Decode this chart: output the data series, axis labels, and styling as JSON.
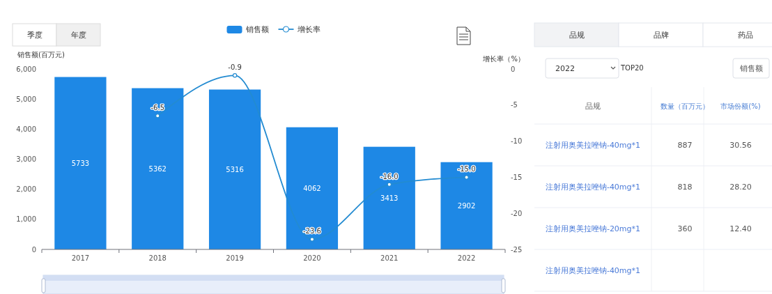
{
  "chart_data": [
    {
      "type": "bar",
      "categories": [
        "2017",
        "2018",
        "2019",
        "2020",
        "2021",
        "2022"
      ],
      "series": [
        {
          "name": "销售额",
          "type": "bar",
          "color": "#1e88e5",
          "values": [
            5733,
            5362,
            5316,
            4062,
            3413,
            2902
          ],
          "value_labels": [
            "5733",
            "5362",
            "5316",
            "4062",
            "3413",
            "2902"
          ]
        },
        {
          "name": "增长率",
          "type": "line",
          "axis": "y2",
          "color": "#238bd1",
          "values": [
            null,
            -6.5,
            -0.9,
            -23.6,
            -16.0,
            -15.0
          ],
          "value_labels": [
            null,
            "-6.5",
            "-0.9",
            "-23.6",
            "-16.0",
            "-15.0"
          ]
        }
      ],
      "ylabel": "销售额(百万元)",
      "y2label": "增长率（%）",
      "ylim": [
        0,
        6000
      ],
      "yticks": [
        0,
        {
          "value": 1000,
          "label": "1,000"
        },
        {
          "value": 2000,
          "label": "2,000"
        },
        {
          "value": 3000,
          "label": "3,000"
        },
        {
          "value": 4000,
          "label": "4,000"
        },
        {
          "value": 5000,
          "label": "5,000"
        },
        {
          "value": 6000,
          "label": "6,000"
        }
      ],
      "y2lim": [
        -25,
        0
      ],
      "y2ticks": [
        -25,
        -20,
        -15,
        -10,
        -5,
        0
      ],
      "legend": "top",
      "marker": "circle",
      "annotations": [
        "季度",
        "年度"
      ]
    },
    {
      "type": "other",
      "xlabel": "品规",
      "categories": [
        "注射用奥美拉唑钠-40mg*1",
        "注射用奥美拉唑钠-40mg*1",
        "注射用奥美拉唑钠-20mg*1",
        "注射用奥美拉唑钠-40mg*1"
      ],
      "series": [
        {
          "name": "数量（百万元）",
          "values": [
            887,
            818,
            360,
            null
          ],
          "value_labels": [
            "887",
            "818",
            "360",
            null
          ]
        },
        {
          "name": "市场份额(%)",
          "values": [
            30.56,
            28.2,
            12.4,
            null
          ],
          "value_labels": [
            "30.56",
            "28.20",
            "12.40",
            null
          ]
        }
      ],
      "annotations": [
        "品规",
        "品牌",
        "药品",
        "2022",
        "TOP20",
        "销售额"
      ]
    }
  ]
}
